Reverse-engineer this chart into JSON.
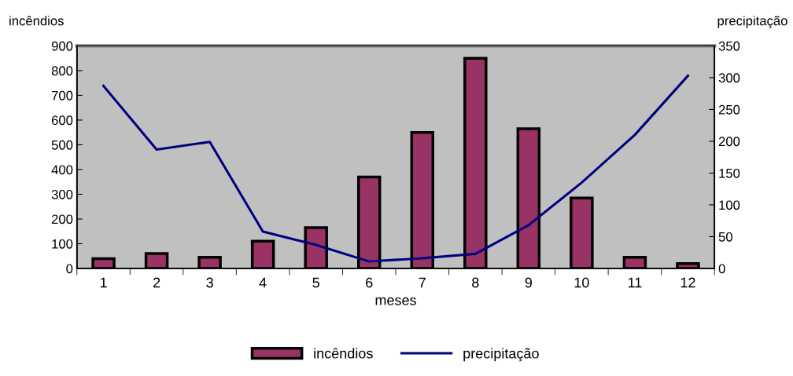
{
  "chart_data": {
    "type": "bar",
    "xlabel": "meses",
    "ylabel": "incêndios",
    "y2label": "precipitação",
    "categories": [
      "1",
      "2",
      "3",
      "4",
      "5",
      "6",
      "7",
      "8",
      "9",
      "10",
      "11",
      "12"
    ],
    "series": [
      {
        "name": "incêndios",
        "color": "#993366",
        "values": [
          40,
          60,
          45,
          110,
          165,
          370,
          550,
          850,
          565,
          285,
          45,
          20
        ]
      },
      {
        "name": "precipitação",
        "type": "line",
        "axis": "y2",
        "color": "#000080",
        "values": [
          287,
          187,
          199,
          58,
          37,
          11,
          16,
          23,
          68,
          135,
          210,
          303
        ]
      }
    ],
    "ylim": [
      0,
      900
    ],
    "yticks": [
      0,
      100,
      200,
      300,
      400,
      500,
      600,
      700,
      800,
      900
    ],
    "y2lim": [
      0,
      350
    ],
    "y2ticks": [
      0,
      50,
      100,
      150,
      200,
      250,
      300,
      350
    ],
    "grid": false,
    "legend": "bottom",
    "marker": "none",
    "line_style": "solid"
  }
}
